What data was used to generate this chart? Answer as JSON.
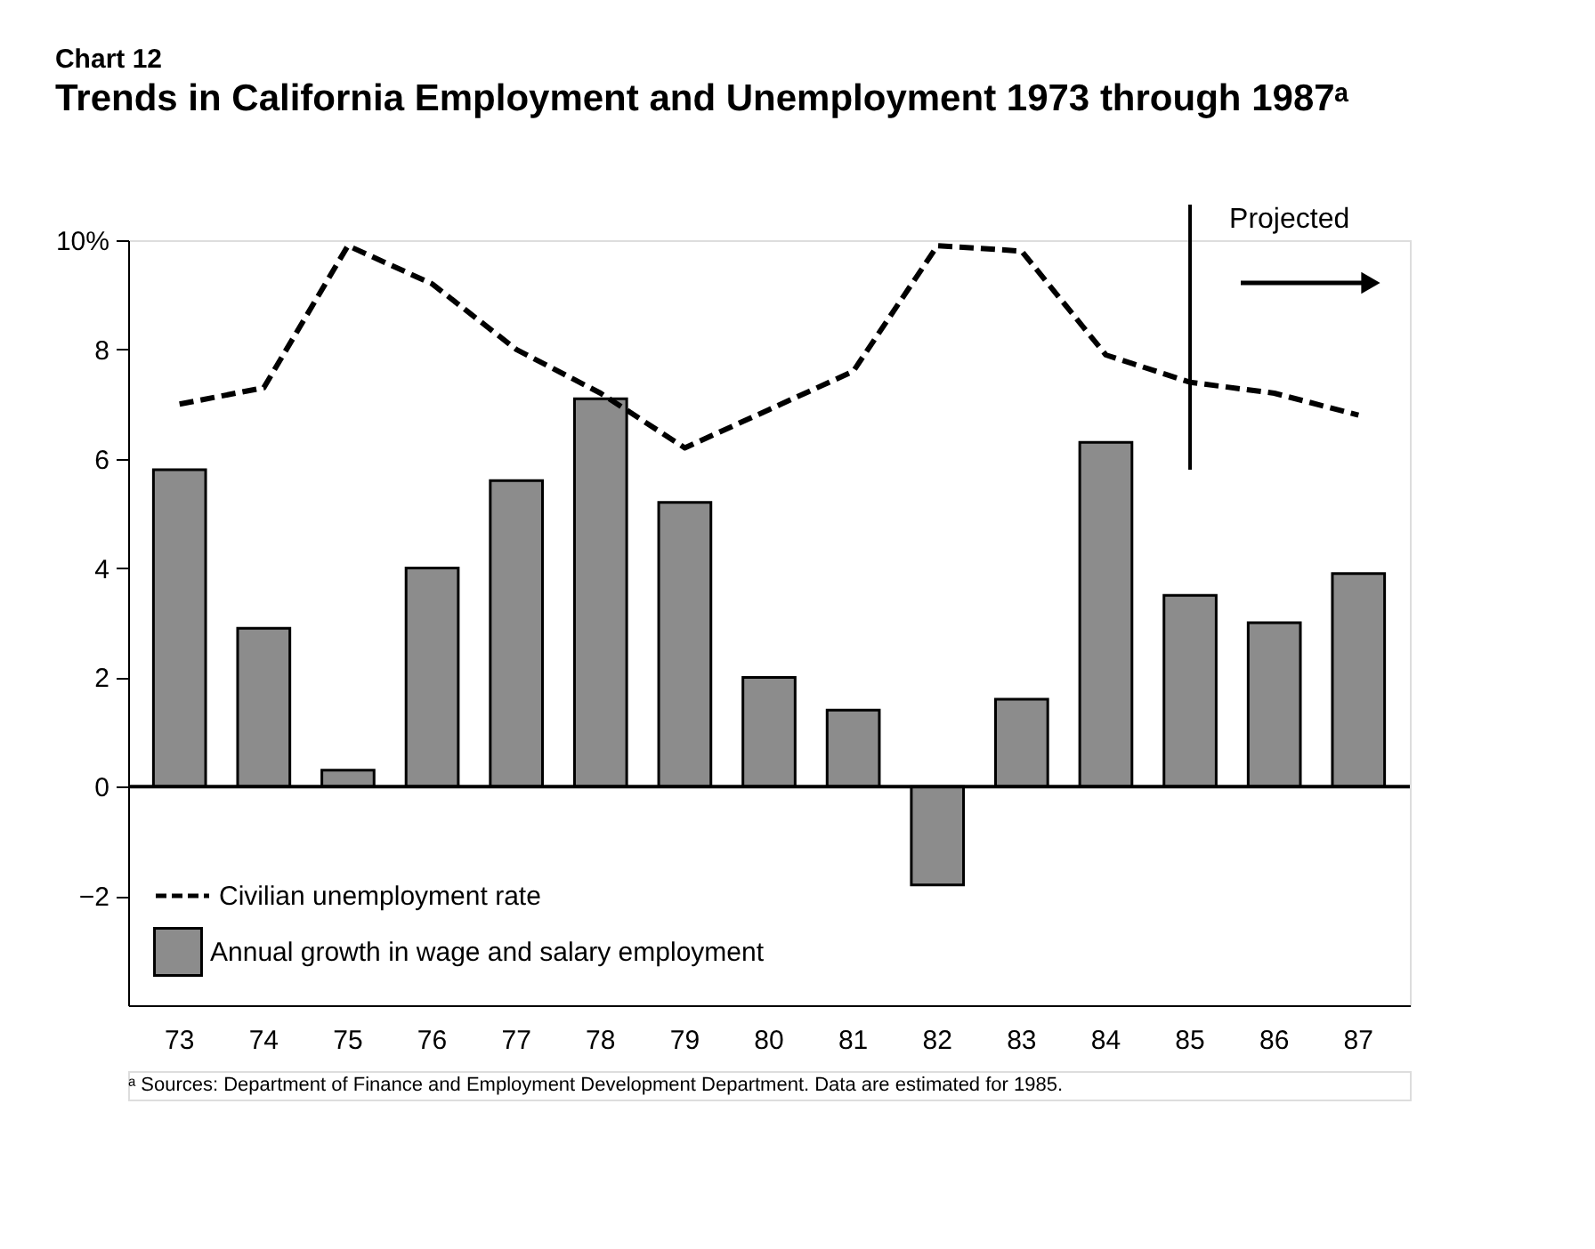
{
  "chart_data": {
    "type": "bar",
    "title": "Chart 12",
    "subtitle": "Trends in California Employment and Unemployment 1973 through 1987ᵃ",
    "categories": [
      "73",
      "74",
      "75",
      "76",
      "77",
      "78",
      "79",
      "80",
      "81",
      "82",
      "83",
      "84",
      "85",
      "86",
      "87"
    ],
    "series": [
      {
        "name": "Annual growth in wage and salary employment",
        "color": "#8c8c8c",
        "values": [
          5.8,
          2.9,
          0.3,
          4.0,
          5.6,
          7.1,
          5.2,
          2.0,
          1.4,
          -1.8,
          1.6,
          6.3,
          3.5,
          3.0,
          3.9
        ]
      },
      {
        "name": "Civilian unemployment rate",
        "type": "line",
        "color": "#000000",
        "line_style": "dashed",
        "values": [
          7.0,
          7.3,
          9.9,
          9.2,
          8.0,
          7.2,
          6.2,
          6.9,
          7.6,
          9.9,
          9.8,
          7.9,
          7.4,
          7.2,
          6.8
        ]
      }
    ],
    "ylim": [
      -4,
      10
    ],
    "yticks": [
      -2,
      0,
      2,
      4,
      6,
      8,
      {
        "value": 10,
        "label": "10%"
      }
    ],
    "ref_lines": [
      {
        "axis": "y",
        "value": 0,
        "color": "#000000"
      },
      {
        "axis": "x",
        "value": "85",
        "label": "Projected",
        "color": "#000000"
      }
    ],
    "annotations": [
      "ᵃ Sources: Department of Finance and Employment Development Department. Data are estimated for 1985."
    ],
    "legend": "bottom left",
    "grid": false,
    "marker": "none"
  }
}
